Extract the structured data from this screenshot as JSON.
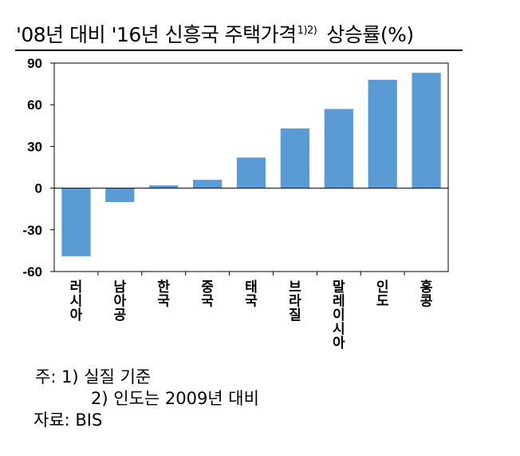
{
  "title": {
    "main": "'08년 대비 '16년 신흥국 주택가격",
    "superscript": "1)2)",
    "tail": "상승률(%)"
  },
  "chart_data": {
    "type": "bar",
    "categories": [
      "러시아",
      "남아공",
      "한국",
      "중국",
      "태국",
      "브라질",
      "말레이시아",
      "인도",
      "홍콩"
    ],
    "values": [
      -49,
      -10,
      2,
      6,
      22,
      43,
      57,
      78,
      83
    ],
    "yticks": [
      "90",
      "60",
      "30",
      "0",
      "-30",
      "-60"
    ],
    "ylim": [
      -60,
      90
    ],
    "bar_color": "#5b9bd5",
    "grid": false
  },
  "notes": {
    "note1": "주:  1)  실질  기준",
    "note2": "2)  인도는  2009년  대비",
    "source": "자료:  BIS"
  }
}
